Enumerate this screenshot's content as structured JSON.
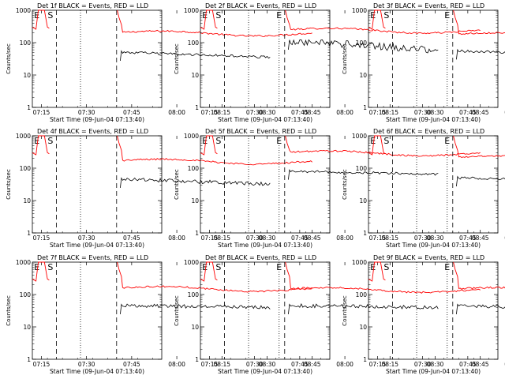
{
  "chart_data": {
    "type": "line",
    "layout": "3x3 grid of panels",
    "yscale": "log",
    "ylim": [
      1,
      1000
    ],
    "xlim_minutes_from_07_00": [
      12,
      55
    ],
    "ytick_values": [
      1,
      10,
      100,
      1000
    ],
    "ytick_labels": [
      "1",
      "10",
      "100",
      "1000"
    ],
    "xtick_values": [
      15,
      30,
      45,
      60,
      75,
      90,
      105
    ],
    "xtick_labels": [
      "07:15",
      "07:30",
      "07:45",
      "08:00",
      "08:15",
      "08:30",
      "08:45"
    ],
    "ylabel": "Counts/sec",
    "xlabel": "Start Time (09-Jun-04 07:13:40)",
    "series_meaning": {
      "black": "Events",
      "red": "LLD"
    },
    "colors": {
      "events": "#000000",
      "lld": "#ff0000",
      "axes": "#000000",
      "background": "#ffffff"
    },
    "markers": [
      {
        "label": "E",
        "x": 13.5
      },
      {
        "label": "S",
        "x": 18
      },
      {
        "label": "E",
        "x": 94
      }
    ],
    "vlines_dashed": [
      20,
      40
    ],
    "vlines_dotted": [
      28,
      94
    ],
    "panels": [
      {
        "title": "Det 1f BLACK = Events, RED = LLD",
        "lld_plateau": 180,
        "events_start": 50,
        "events_end": 35,
        "events_noise": 0.04
      },
      {
        "title": "Det 2f BLACK = Events, RED = LLD",
        "lld_plateau": 220,
        "events_start": 110,
        "events_end": 55,
        "events_noise": 0.12
      },
      {
        "title": "Det 3f BLACK = Events, RED = LLD",
        "lld_plateau": 160,
        "events_start": 55,
        "events_end": 40,
        "events_noise": 0.04
      },
      {
        "title": "Det 4f BLACK = Events, RED = LLD",
        "lld_plateau": 150,
        "events_start": 45,
        "events_end": 32,
        "events_noise": 0.06
      },
      {
        "title": "Det 5f BLACK = Events, RED = LLD",
        "lld_plateau": 270,
        "events_start": 80,
        "events_end": 65,
        "events_noise": 0.04
      },
      {
        "title": "Det 6f BLACK = Events, RED = LLD",
        "lld_plateau": 190,
        "events_start": 50,
        "events_end": 42,
        "events_noise": 0.04
      },
      {
        "title": "Det 7f BLACK = Events, RED = LLD",
        "lld_plateau": 140,
        "events_start": 45,
        "events_end": 40,
        "events_noise": 0.06
      },
      {
        "title": "Det 8f BLACK = Events, RED = LLD",
        "lld_plateau": 130,
        "events_start": 45,
        "events_end": 40,
        "events_noise": 0.06
      },
      {
        "title": "Det 9f BLACK = Events, RED = LLD",
        "lld_plateau": 130,
        "events_start": 45,
        "events_end": 33,
        "events_noise": 0.05
      }
    ]
  }
}
